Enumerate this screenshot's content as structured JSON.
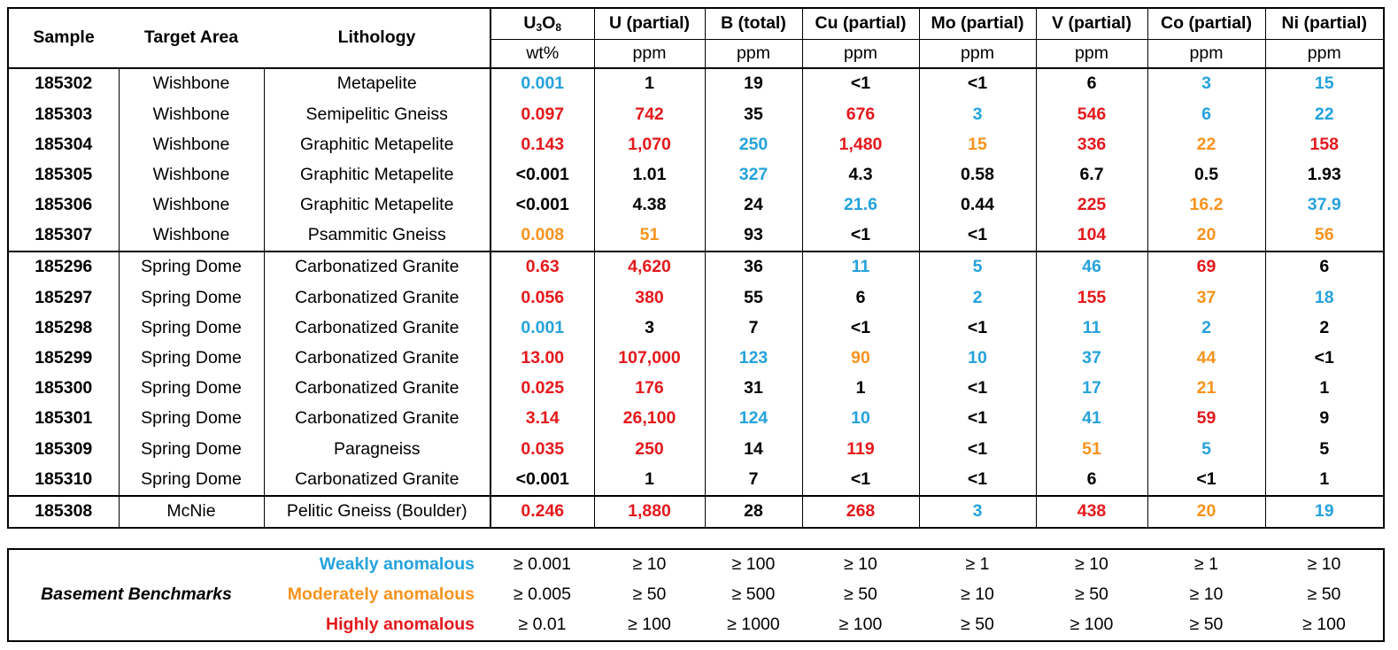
{
  "colors": {
    "weak": "#26a2dc",
    "moderate": "#f7931e",
    "high": "#e3191c",
    "normal": "#000000"
  },
  "header": {
    "sample": "Sample",
    "target_area": "Target Area",
    "lithology": "Lithology",
    "u3o8_u": "U",
    "u3o8_3": "3",
    "u3o8_o": "O",
    "u3o8_8": "8",
    "elements": [
      "U (partial)",
      "B (total)",
      "Cu (partial)",
      "Mo (partial)",
      "V (partial)",
      "Co (partial)",
      "Ni (partial)"
    ],
    "units": [
      "wt%",
      "ppm",
      "ppm",
      "ppm",
      "ppm",
      "ppm",
      "ppm",
      "ppm"
    ]
  },
  "rows": [
    {
      "sample": "185302",
      "area": "Wishbone",
      "lithology": "Metapelite",
      "values": [
        {
          "v": "0.001",
          "c": "weak"
        },
        {
          "v": "1",
          "c": "normal"
        },
        {
          "v": "19",
          "c": "normal"
        },
        {
          "v": "<1",
          "c": "normal"
        },
        {
          "v": "<1",
          "c": "normal"
        },
        {
          "v": "6",
          "c": "normal"
        },
        {
          "v": "3",
          "c": "weak"
        },
        {
          "v": "15",
          "c": "weak"
        }
      ]
    },
    {
      "sample": "185303",
      "area": "Wishbone",
      "lithology": "Semipelitic Gneiss",
      "values": [
        {
          "v": "0.097",
          "c": "high"
        },
        {
          "v": "742",
          "c": "high"
        },
        {
          "v": "35",
          "c": "normal"
        },
        {
          "v": "676",
          "c": "high"
        },
        {
          "v": "3",
          "c": "weak"
        },
        {
          "v": "546",
          "c": "high"
        },
        {
          "v": "6",
          "c": "weak"
        },
        {
          "v": "22",
          "c": "weak"
        }
      ]
    },
    {
      "sample": "185304",
      "area": "Wishbone",
      "lithology": "Graphitic Metapelite",
      "values": [
        {
          "v": "0.143",
          "c": "high"
        },
        {
          "v": "1,070",
          "c": "high"
        },
        {
          "v": "250",
          "c": "weak"
        },
        {
          "v": "1,480",
          "c": "high"
        },
        {
          "v": "15",
          "c": "moderate"
        },
        {
          "v": "336",
          "c": "high"
        },
        {
          "v": "22",
          "c": "moderate"
        },
        {
          "v": "158",
          "c": "high"
        }
      ]
    },
    {
      "sample": "185305",
      "area": "Wishbone",
      "lithology": "Graphitic Metapelite",
      "values": [
        {
          "v": "<0.001",
          "c": "normal"
        },
        {
          "v": "1.01",
          "c": "normal"
        },
        {
          "v": "327",
          "c": "weak"
        },
        {
          "v": "4.3",
          "c": "normal"
        },
        {
          "v": "0.58",
          "c": "normal"
        },
        {
          "v": "6.7",
          "c": "normal"
        },
        {
          "v": "0.5",
          "c": "normal"
        },
        {
          "v": "1.93",
          "c": "normal"
        }
      ]
    },
    {
      "sample": "185306",
      "area": "Wishbone",
      "lithology": "Graphitic Metapelite",
      "values": [
        {
          "v": "<0.001",
          "c": "normal"
        },
        {
          "v": "4.38",
          "c": "normal"
        },
        {
          "v": "24",
          "c": "normal"
        },
        {
          "v": "21.6",
          "c": "weak"
        },
        {
          "v": "0.44",
          "c": "normal"
        },
        {
          "v": "225",
          "c": "high"
        },
        {
          "v": "16.2",
          "c": "moderate"
        },
        {
          "v": "37.9",
          "c": "weak"
        }
      ]
    },
    {
      "sample": "185307",
      "area": "Wishbone",
      "lithology": "Psammitic Gneiss",
      "values": [
        {
          "v": "0.008",
          "c": "moderate"
        },
        {
          "v": "51",
          "c": "moderate"
        },
        {
          "v": "93",
          "c": "normal"
        },
        {
          "v": "<1",
          "c": "normal"
        },
        {
          "v": "<1",
          "c": "normal"
        },
        {
          "v": "104",
          "c": "high"
        },
        {
          "v": "20",
          "c": "moderate"
        },
        {
          "v": "56",
          "c": "moderate"
        }
      ]
    },
    {
      "sample": "185296",
      "area": "Spring Dome",
      "lithology": "Carbonatized Granite",
      "values": [
        {
          "v": "0.63",
          "c": "high"
        },
        {
          "v": "4,620",
          "c": "high"
        },
        {
          "v": "36",
          "c": "normal"
        },
        {
          "v": "11",
          "c": "weak"
        },
        {
          "v": "5",
          "c": "weak"
        },
        {
          "v": "46",
          "c": "weak"
        },
        {
          "v": "69",
          "c": "high"
        },
        {
          "v": "6",
          "c": "normal"
        }
      ]
    },
    {
      "sample": "185297",
      "area": "Spring Dome",
      "lithology": "Carbonatized Granite",
      "values": [
        {
          "v": "0.056",
          "c": "high"
        },
        {
          "v": "380",
          "c": "high"
        },
        {
          "v": "55",
          "c": "normal"
        },
        {
          "v": "6",
          "c": "normal"
        },
        {
          "v": "2",
          "c": "weak"
        },
        {
          "v": "155",
          "c": "high"
        },
        {
          "v": "37",
          "c": "moderate"
        },
        {
          "v": "18",
          "c": "weak"
        }
      ]
    },
    {
      "sample": "185298",
      "area": "Spring Dome",
      "lithology": "Carbonatized Granite",
      "values": [
        {
          "v": "0.001",
          "c": "weak"
        },
        {
          "v": "3",
          "c": "normal"
        },
        {
          "v": "7",
          "c": "normal"
        },
        {
          "v": "<1",
          "c": "normal"
        },
        {
          "v": "<1",
          "c": "normal"
        },
        {
          "v": "11",
          "c": "weak"
        },
        {
          "v": "2",
          "c": "weak"
        },
        {
          "v": "2",
          "c": "normal"
        }
      ]
    },
    {
      "sample": "185299",
      "area": "Spring Dome",
      "lithology": "Carbonatized Granite",
      "values": [
        {
          "v": "13.00",
          "c": "high"
        },
        {
          "v": "107,000",
          "c": "high"
        },
        {
          "v": "123",
          "c": "weak"
        },
        {
          "v": "90",
          "c": "moderate"
        },
        {
          "v": "10",
          "c": "weak"
        },
        {
          "v": "37",
          "c": "weak"
        },
        {
          "v": "44",
          "c": "moderate"
        },
        {
          "v": "<1",
          "c": "normal"
        }
      ]
    },
    {
      "sample": "185300",
      "area": "Spring Dome",
      "lithology": "Carbonatized Granite",
      "values": [
        {
          "v": "0.025",
          "c": "high"
        },
        {
          "v": "176",
          "c": "high"
        },
        {
          "v": "31",
          "c": "normal"
        },
        {
          "v": "1",
          "c": "normal"
        },
        {
          "v": "<1",
          "c": "normal"
        },
        {
          "v": "17",
          "c": "weak"
        },
        {
          "v": "21",
          "c": "moderate"
        },
        {
          "v": "1",
          "c": "normal"
        }
      ]
    },
    {
      "sample": "185301",
      "area": "Spring Dome",
      "lithology": "Carbonatized Granite",
      "values": [
        {
          "v": "3.14",
          "c": "high"
        },
        {
          "v": "26,100",
          "c": "high"
        },
        {
          "v": "124",
          "c": "weak"
        },
        {
          "v": "10",
          "c": "weak"
        },
        {
          "v": "<1",
          "c": "normal"
        },
        {
          "v": "41",
          "c": "weak"
        },
        {
          "v": "59",
          "c": "high"
        },
        {
          "v": "9",
          "c": "normal"
        }
      ]
    },
    {
      "sample": "185309",
      "area": "Spring Dome",
      "lithology": "Paragneiss",
      "values": [
        {
          "v": "0.035",
          "c": "high"
        },
        {
          "v": "250",
          "c": "high"
        },
        {
          "v": "14",
          "c": "normal"
        },
        {
          "v": "119",
          "c": "high"
        },
        {
          "v": "<1",
          "c": "normal"
        },
        {
          "v": "51",
          "c": "moderate"
        },
        {
          "v": "5",
          "c": "weak"
        },
        {
          "v": "5",
          "c": "normal"
        }
      ]
    },
    {
      "sample": "185310",
      "area": "Spring Dome",
      "lithology": "Carbonatized Granite",
      "values": [
        {
          "v": "<0.001",
          "c": "normal"
        },
        {
          "v": "1",
          "c": "normal"
        },
        {
          "v": "7",
          "c": "normal"
        },
        {
          "v": "<1",
          "c": "normal"
        },
        {
          "v": "<1",
          "c": "normal"
        },
        {
          "v": "6",
          "c": "normal"
        },
        {
          "v": "<1",
          "c": "normal"
        },
        {
          "v": "1",
          "c": "normal"
        }
      ]
    },
    {
      "sample": "185308",
      "area": "McNie",
      "lithology": "Pelitic Gneiss (Boulder)",
      "values": [
        {
          "v": "0.246",
          "c": "high"
        },
        {
          "v": "1,880",
          "c": "high"
        },
        {
          "v": "28",
          "c": "normal"
        },
        {
          "v": "268",
          "c": "high"
        },
        {
          "v": "3",
          "c": "weak"
        },
        {
          "v": "438",
          "c": "high"
        },
        {
          "v": "20",
          "c": "moderate"
        },
        {
          "v": "19",
          "c": "weak"
        }
      ]
    }
  ],
  "benchmarks": {
    "title": "Basement Benchmarks",
    "levels": [
      {
        "label": "Weakly anomalous",
        "c": "weak",
        "values": [
          "≥ 0.001",
          "≥ 10",
          "≥ 100",
          "≥ 10",
          "≥ 1",
          "≥ 10",
          "≥ 1",
          "≥ 10"
        ]
      },
      {
        "label": "Moderately anomalous",
        "c": "moderate",
        "values": [
          "≥ 0.005",
          "≥ 50",
          "≥ 500",
          "≥ 50",
          "≥ 10",
          "≥ 50",
          "≥ 10",
          "≥ 50"
        ]
      },
      {
        "label": "Highly anomalous",
        "c": "high",
        "values": [
          "≥ 0.01",
          "≥ 100",
          "≥ 1000",
          "≥ 100",
          "≥ 50",
          "≥ 100",
          "≥ 50",
          "≥ 100"
        ]
      }
    ]
  }
}
